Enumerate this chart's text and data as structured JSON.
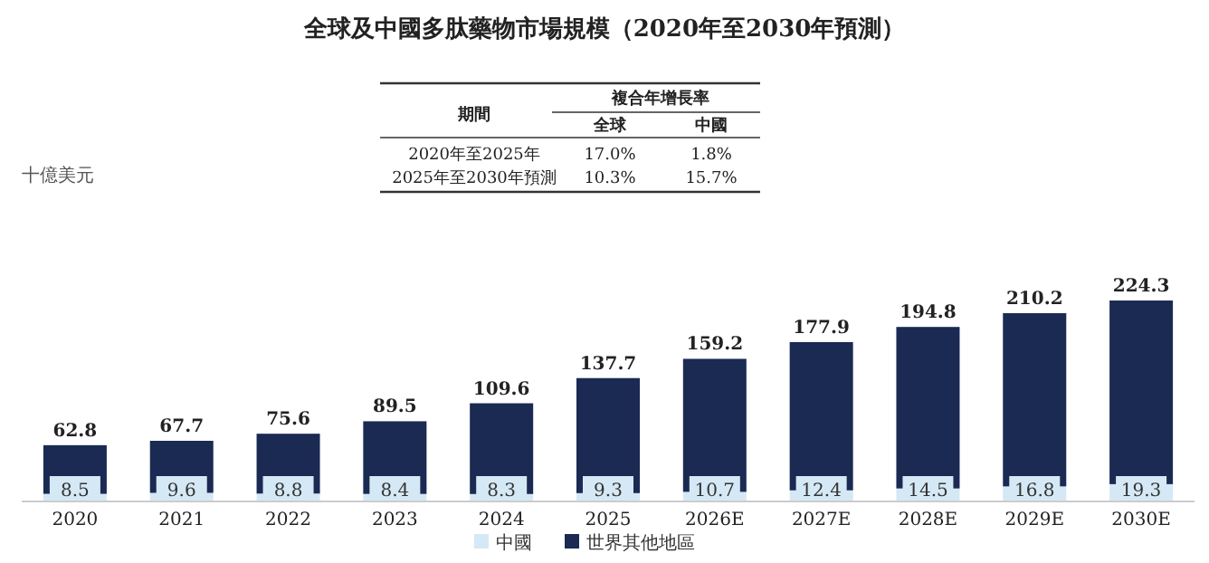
{
  "chart_data": {
    "type": "bar",
    "title": "全球及中國多肽藥物市場規模（2020年至2030年預測）",
    "categories": [
      "2020",
      "2021",
      "2022",
      "2023",
      "2024",
      "2025",
      "2026E",
      "2027E",
      "2028E",
      "2029E",
      "2030E"
    ],
    "stacked": true,
    "series": [
      {
        "name": "中國",
        "color": "#d5e8f5",
        "values": [
          8.5,
          9.6,
          8.8,
          8.4,
          8.3,
          9.3,
          10.7,
          12.4,
          14.5,
          16.8,
          19.3
        ],
        "value_labels": [
          "8.5",
          "9.6",
          "8.8",
          "8.4",
          "8.3",
          "9.3",
          "10.7",
          "12.4",
          "14.5",
          "16.8",
          "19.3"
        ]
      },
      {
        "name": "世界其他地區",
        "color": "#1b2a52",
        "values": [
          54.3,
          58.1,
          66.8,
          81.1,
          101.3,
          128.4,
          148.5,
          165.5,
          180.3,
          193.4,
          205.0
        ]
      }
    ],
    "totals": [
      "62.8",
      "67.7",
      "75.6",
      "89.5",
      "109.6",
      "137.7",
      "159.2",
      "177.9",
      "194.8",
      "210.2",
      "224.3"
    ],
    "legend": "bottom",
    "annotations": [
      "期間",
      "複合年增長率",
      "全球",
      "中國",
      "2020年至2025年",
      "17.0%",
      "1.8%",
      "2025年至2030年預測",
      "10.3%",
      "15.7%",
      "十億美元"
    ]
  }
}
